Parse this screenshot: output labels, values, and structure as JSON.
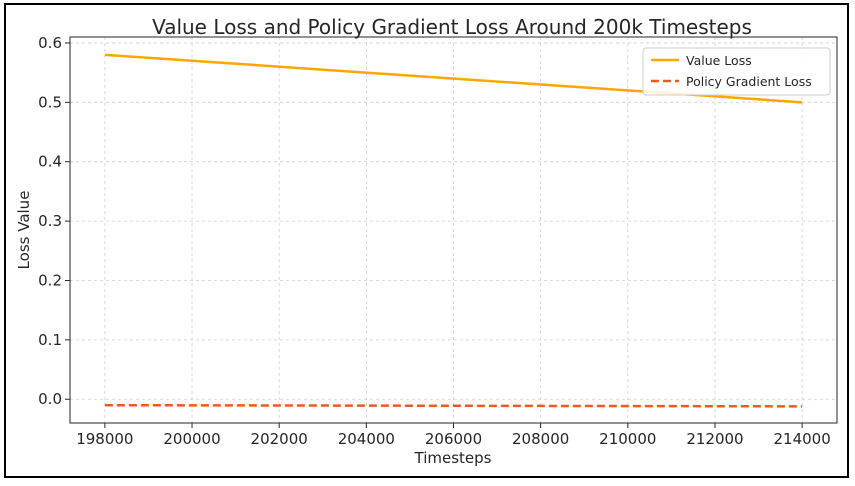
{
  "chart_data": {
    "type": "line",
    "title": "Value Loss and Policy Gradient Loss Around 200k Timesteps",
    "xlabel": "Timesteps",
    "ylabel": "Loss Value",
    "x": [
      198000,
      214000
    ],
    "xlim": [
      197200,
      214800
    ],
    "ylim": [
      -0.04,
      0.61
    ],
    "xticks": [
      "198000",
      "200000",
      "202000",
      "204000",
      "206000",
      "208000",
      "210000",
      "212000",
      "214000"
    ],
    "xtick_values": [
      198000,
      200000,
      202000,
      204000,
      206000,
      208000,
      210000,
      212000,
      214000
    ],
    "yticks": [
      "0.0",
      "0.1",
      "0.2",
      "0.3",
      "0.4",
      "0.5",
      "0.6"
    ],
    "ytick_values": [
      0.0,
      0.1,
      0.2,
      0.3,
      0.4,
      0.5,
      0.6
    ],
    "grid": true,
    "legend_position": "top-right",
    "series": [
      {
        "name": "Value Loss",
        "values": [
          0.58,
          0.5
        ],
        "color": "#ffa600",
        "style": "solid"
      },
      {
        "name": "Policy Gradient Loss",
        "values": [
          -0.01,
          -0.012
        ],
        "color": "#ec5b1c",
        "style": "dashed"
      }
    ]
  }
}
